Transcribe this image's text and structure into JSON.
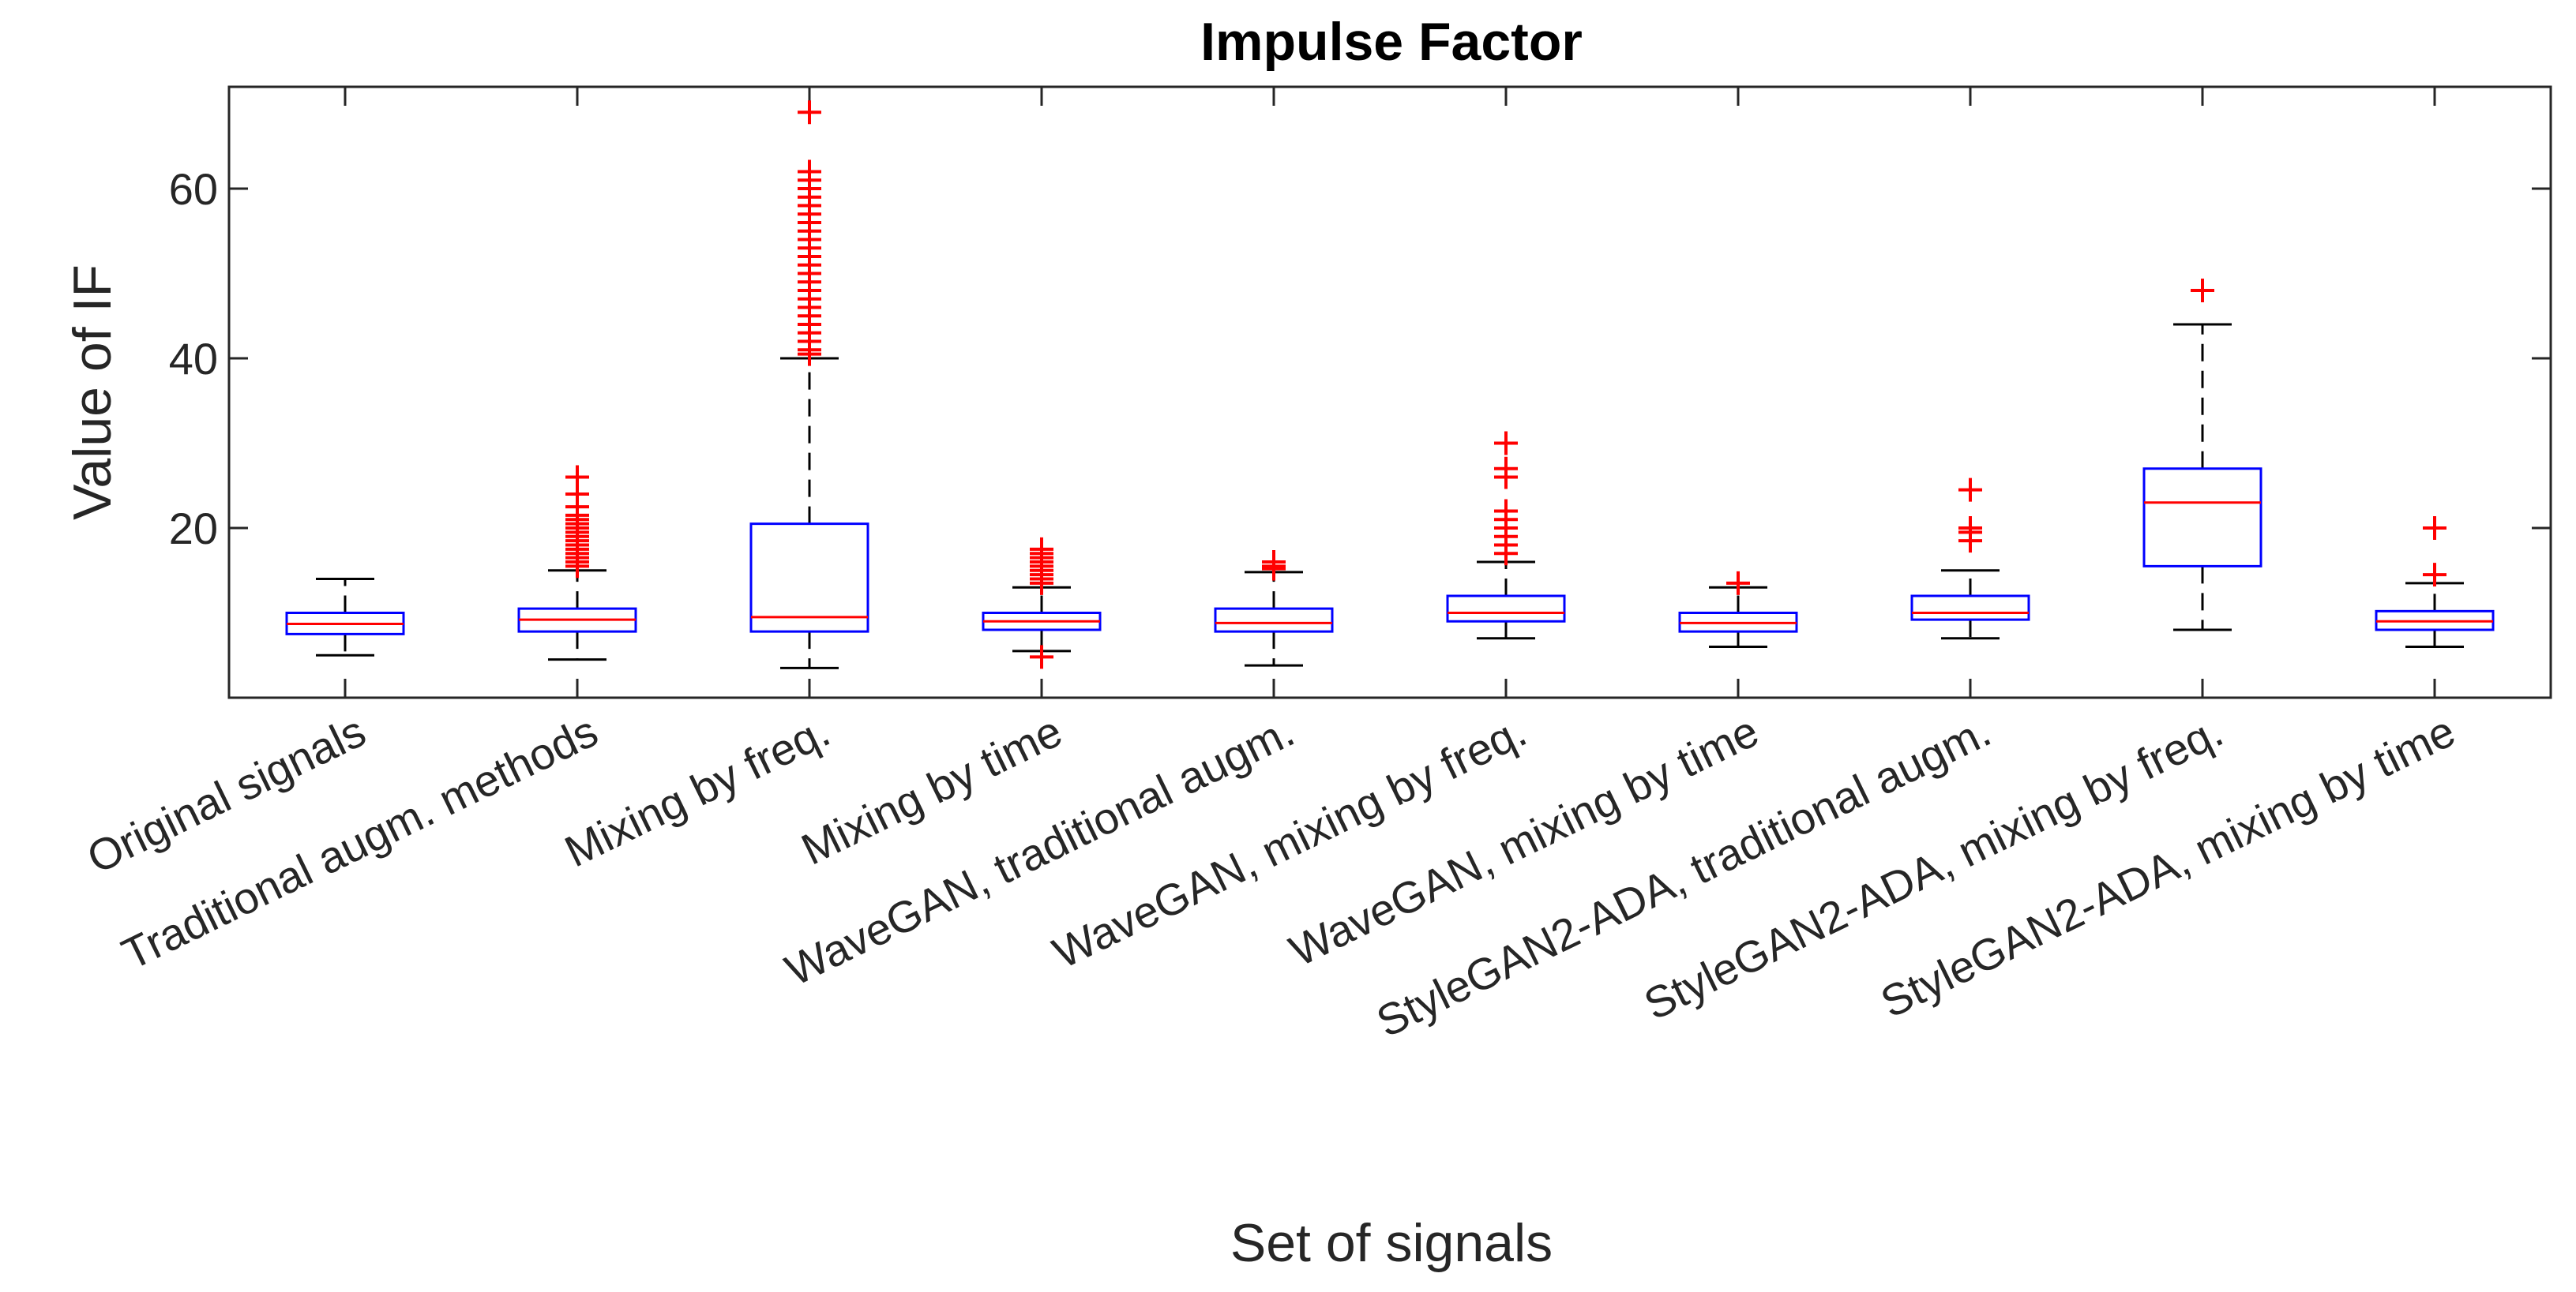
{
  "chart_data": {
    "type": "box",
    "title": "Impulse Factor",
    "xlabel": "Set of signals",
    "ylabel": "Value of  IF",
    "ylim": [
      0,
      72
    ],
    "yticks": [
      20,
      40,
      60
    ],
    "grid": false,
    "categories": [
      "Original signals",
      "Traditional augm. methods",
      "Mixing by freq.",
      "Mixing by time",
      "WaveGAN, traditional augm.",
      "WaveGAN, mixing by freq.",
      "WaveGAN, mixing by time",
      "StyleGAN2-ADA, traditional augm.",
      "StyleGAN2-ADA, mixing by freq.",
      "StyleGAN2-ADA, mixing by time"
    ],
    "boxes": [
      {
        "whisker_low": 5.0,
        "q1": 7.5,
        "median": 8.7,
        "q3": 10.0,
        "whisker_high": 14.0,
        "outliers": []
      },
      {
        "whisker_low": 4.5,
        "q1": 7.8,
        "median": 9.2,
        "q3": 10.5,
        "whisker_high": 15.0,
        "outliers": [
          15.5,
          16,
          16.5,
          17,
          17.5,
          18,
          18.5,
          19,
          19.5,
          20,
          20.5,
          21,
          21.5,
          22.5,
          24,
          26
        ]
      },
      {
        "whisker_low": 3.5,
        "q1": 7.8,
        "median": 9.5,
        "q3": 20.5,
        "whisker_high": 40.0,
        "outliers": [
          40.5,
          41,
          42,
          43,
          44,
          45,
          46,
          47,
          48,
          49,
          50,
          51,
          52,
          53,
          54,
          55,
          56,
          57,
          58,
          59,
          60,
          61,
          62,
          69
        ]
      },
      {
        "whisker_low": 5.5,
        "q1": 8.0,
        "median": 9.0,
        "q3": 10.0,
        "whisker_high": 13.0,
        "outliers": [
          4.8,
          13.5,
          14,
          14.5,
          15,
          15.5,
          16,
          16.5,
          17,
          17.5
        ]
      },
      {
        "whisker_low": 3.8,
        "q1": 7.8,
        "median": 8.8,
        "q3": 10.5,
        "whisker_high": 14.8,
        "outliers": [
          15.2,
          15.5,
          16.0
        ]
      },
      {
        "whisker_low": 7.0,
        "q1": 9.0,
        "median": 10.0,
        "q3": 12.0,
        "whisker_high": 16.0,
        "outliers": [
          17,
          18,
          19,
          20,
          21,
          22,
          26,
          27,
          30
        ]
      },
      {
        "whisker_low": 6.0,
        "q1": 7.8,
        "median": 8.8,
        "q3": 10.0,
        "whisker_high": 13.0,
        "outliers": [
          13.5
        ]
      },
      {
        "whisker_low": 7.0,
        "q1": 9.2,
        "median": 10.0,
        "q3": 12.0,
        "whisker_high": 15.0,
        "outliers": [
          18.5,
          19.5,
          20.0,
          24.5
        ]
      },
      {
        "whisker_low": 8.0,
        "q1": 15.5,
        "median": 23.0,
        "q3": 27.0,
        "whisker_high": 44.0,
        "outliers": [
          48.0
        ]
      },
      {
        "whisker_low": 6.0,
        "q1": 8.0,
        "median": 9.0,
        "q3": 10.2,
        "whisker_high": 13.5,
        "outliers": [
          14.5,
          20.0
        ]
      }
    ],
    "colors": {
      "box": "#0000ff",
      "median": "#ff0000",
      "outlier": "#ff0000",
      "whisker": "#000000",
      "axis": "#262626"
    }
  }
}
